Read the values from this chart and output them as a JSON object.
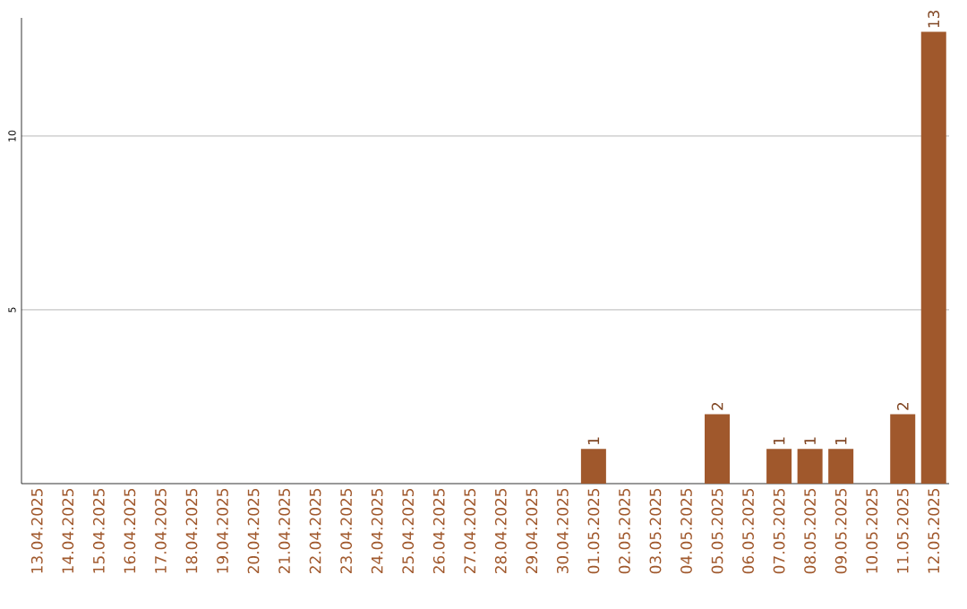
{
  "chart_data": {
    "type": "bar",
    "categories": [
      "13.04.2025",
      "14.04.2025",
      "15.04.2025",
      "16.04.2025",
      "17.04.2025",
      "18.04.2025",
      "19.04.2025",
      "20.04.2025",
      "21.04.2025",
      "22.04.2025",
      "23.04.2025",
      "24.04.2025",
      "25.04.2025",
      "26.04.2025",
      "27.04.2025",
      "28.04.2025",
      "29.04.2025",
      "30.04.2025",
      "01.05.2025",
      "02.05.2025",
      "03.05.2025",
      "04.05.2025",
      "05.05.2025",
      "06.05.2025",
      "07.05.2025",
      "08.05.2025",
      "09.05.2025",
      "10.05.2025",
      "11.05.2025",
      "12.05.2025"
    ],
    "values": [
      0,
      0,
      0,
      0,
      0,
      0,
      0,
      0,
      0,
      0,
      0,
      0,
      0,
      0,
      0,
      0,
      0,
      0,
      1,
      0,
      0,
      0,
      2,
      0,
      1,
      1,
      1,
      0,
      2,
      13
    ],
    "value_labels": [
      null,
      null,
      null,
      null,
      null,
      null,
      null,
      null,
      null,
      null,
      null,
      null,
      null,
      null,
      null,
      null,
      null,
      null,
      "1",
      null,
      null,
      null,
      "2",
      null,
      "1",
      "1",
      "1",
      null,
      "2",
      "13"
    ],
    "color": "#a0582c",
    "ylim": [
      0,
      13.4
    ],
    "yticks": [
      5,
      10
    ],
    "grid": "y"
  }
}
